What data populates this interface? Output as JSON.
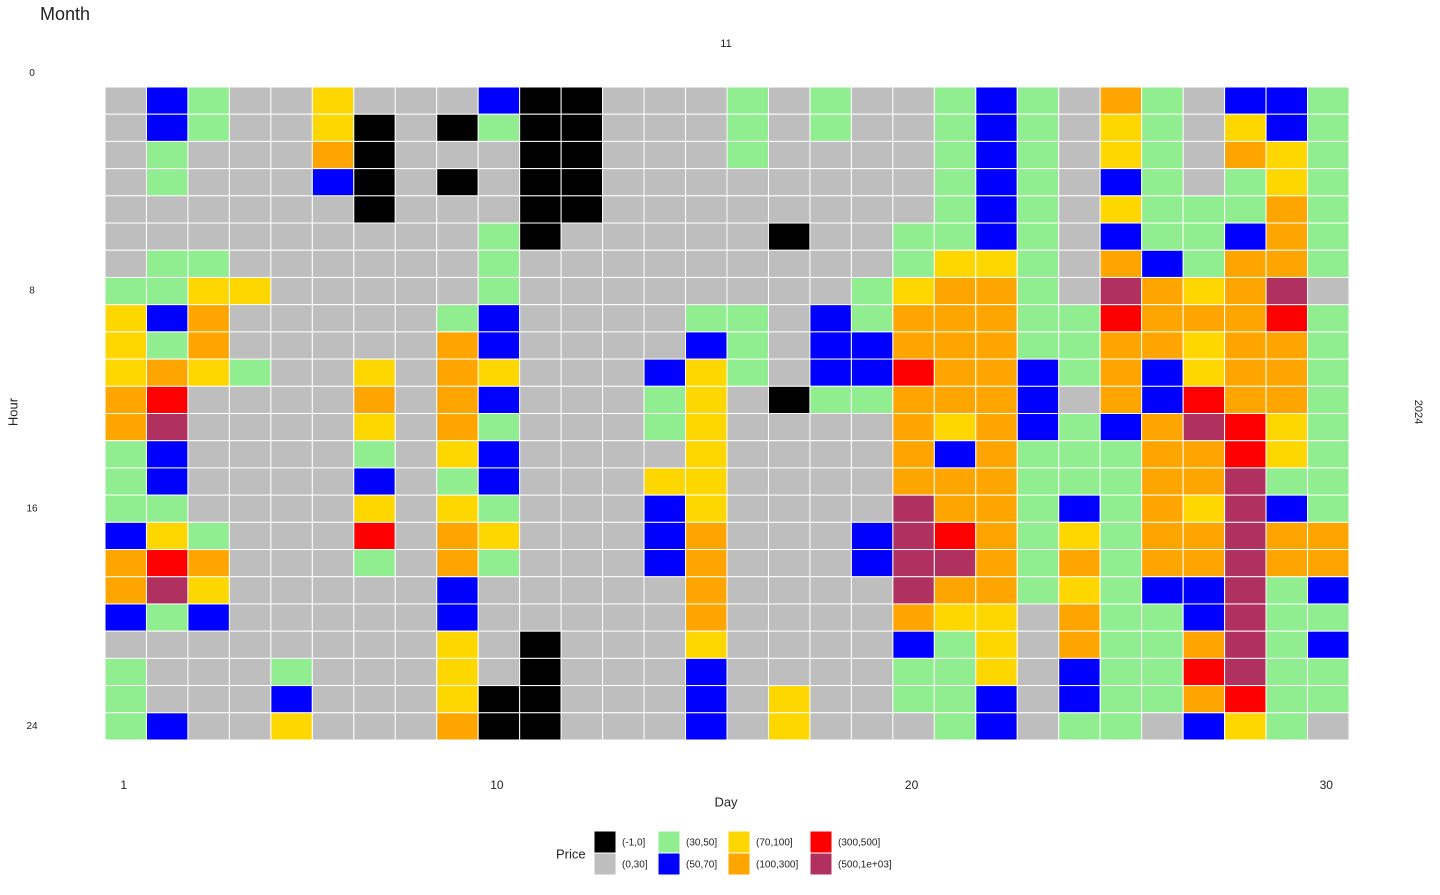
{
  "chart_data": {
    "type": "heatmap",
    "title": "Month",
    "facet_top": "11",
    "facet_right": "2024",
    "x_label": "Day",
    "y_label": "Hour",
    "legend_title": "Price",
    "xlim": [
      0.5,
      30.5
    ],
    "xticks": [
      1,
      10,
      20,
      30
    ],
    "ylim": [
      0.5,
      24.5
    ],
    "yticks": [
      0,
      8,
      16,
      24
    ],
    "y_reversed": true,
    "x": [
      1,
      2,
      3,
      4,
      5,
      6,
      7,
      8,
      9,
      10,
      11,
      12,
      13,
      14,
      15,
      16,
      17,
      18,
      19,
      20,
      21,
      22,
      23,
      24,
      25,
      26,
      27,
      28,
      29,
      30
    ],
    "y": [
      1,
      2,
      3,
      4,
      5,
      6,
      7,
      8,
      9,
      10,
      11,
      12,
      13,
      14,
      15,
      16,
      17,
      18,
      19,
      20,
      21,
      22,
      23,
      24
    ],
    "legend": [
      {
        "label": "(-1,0]",
        "color": "#000000"
      },
      {
        "label": "(0,30]",
        "color": "#bebebe"
      },
      {
        "label": "(30,50]",
        "color": "#90ee90"
      },
      {
        "label": "(50,70]",
        "color": "#0000ff"
      },
      {
        "label": "(70,100]",
        "color": "#ffd700"
      },
      {
        "label": "(100,300]",
        "color": "#ffa500"
      },
      {
        "label": "(300,500]",
        "color": "#ff0000"
      },
      {
        "label": "(500,1e+03]",
        "color": "#b03060"
      }
    ],
    "values": [
      [
        "(0,30]",
        "(50,70]",
        "(30,50]",
        "(0,30]",
        "(0,30]",
        "(70,100]",
        "(0,30]",
        "(0,30]",
        "(0,30]",
        "(50,70]",
        "(-1,0]",
        "(-1,0]",
        "(0,30]",
        "(0,30]",
        "(0,30]",
        "(30,50]",
        "(0,30]",
        "(30,50]",
        "(0,30]",
        "(0,30]",
        "(30,50]",
        "(50,70]",
        "(30,50]",
        "(0,30]",
        "(100,300]",
        "(30,50]",
        "(0,30]",
        "(50,70]",
        "(50,70]",
        "(30,50]"
      ],
      [
        "(0,30]",
        "(50,70]",
        "(30,50]",
        "(0,30]",
        "(0,30]",
        "(70,100]",
        "(-1,0]",
        "(0,30]",
        "(-1,0]",
        "(30,50]",
        "(-1,0]",
        "(-1,0]",
        "(0,30]",
        "(0,30]",
        "(0,30]",
        "(30,50]",
        "(0,30]",
        "(30,50]",
        "(0,30]",
        "(0,30]",
        "(30,50]",
        "(50,70]",
        "(30,50]",
        "(0,30]",
        "(70,100]",
        "(30,50]",
        "(0,30]",
        "(70,100]",
        "(50,70]",
        "(30,50]"
      ],
      [
        "(0,30]",
        "(30,50]",
        "(0,30]",
        "(0,30]",
        "(0,30]",
        "(100,300]",
        "(-1,0]",
        "(0,30]",
        "(0,30]",
        "(0,30]",
        "(-1,0]",
        "(-1,0]",
        "(0,30]",
        "(0,30]",
        "(0,30]",
        "(30,50]",
        "(0,30]",
        "(0,30]",
        "(0,30]",
        "(0,30]",
        "(30,50]",
        "(50,70]",
        "(30,50]",
        "(0,30]",
        "(70,100]",
        "(30,50]",
        "(0,30]",
        "(100,300]",
        "(70,100]",
        "(30,50]"
      ],
      [
        "(0,30]",
        "(30,50]",
        "(0,30]",
        "(0,30]",
        "(0,30]",
        "(50,70]",
        "(-1,0]",
        "(0,30]",
        "(-1,0]",
        "(0,30]",
        "(-1,0]",
        "(-1,0]",
        "(0,30]",
        "(0,30]",
        "(0,30]",
        "(0,30]",
        "(0,30]",
        "(0,30]",
        "(0,30]",
        "(0,30]",
        "(30,50]",
        "(50,70]",
        "(30,50]",
        "(0,30]",
        "(50,70]",
        "(30,50]",
        "(0,30]",
        "(30,50]",
        "(70,100]",
        "(30,50]"
      ],
      [
        "(0,30]",
        "(0,30]",
        "(0,30]",
        "(0,30]",
        "(0,30]",
        "(0,30]",
        "(-1,0]",
        "(0,30]",
        "(0,30]",
        "(0,30]",
        "(-1,0]",
        "(-1,0]",
        "(0,30]",
        "(0,30]",
        "(0,30]",
        "(0,30]",
        "(0,30]",
        "(0,30]",
        "(0,30]",
        "(0,30]",
        "(30,50]",
        "(50,70]",
        "(30,50]",
        "(0,30]",
        "(70,100]",
        "(30,50]",
        "(30,50]",
        "(30,50]",
        "(100,300]",
        "(30,50]"
      ],
      [
        "(0,30]",
        "(0,30]",
        "(0,30]",
        "(0,30]",
        "(0,30]",
        "(0,30]",
        "(0,30]",
        "(0,30]",
        "(0,30]",
        "(30,50]",
        "(-1,0]",
        "(0,30]",
        "(0,30]",
        "(0,30]",
        "(0,30]",
        "(0,30]",
        "(-1,0]",
        "(0,30]",
        "(0,30]",
        "(30,50]",
        "(30,50]",
        "(50,70]",
        "(30,50]",
        "(0,30]",
        "(50,70]",
        "(30,50]",
        "(30,50]",
        "(50,70]",
        "(100,300]",
        "(30,50]"
      ],
      [
        "(0,30]",
        "(30,50]",
        "(30,50]",
        "(0,30]",
        "(0,30]",
        "(0,30]",
        "(0,30]",
        "(0,30]",
        "(0,30]",
        "(30,50]",
        "(0,30]",
        "(0,30]",
        "(0,30]",
        "(0,30]",
        "(0,30]",
        "(0,30]",
        "(0,30]",
        "(0,30]",
        "(0,30]",
        "(30,50]",
        "(70,100]",
        "(70,100]",
        "(30,50]",
        "(0,30]",
        "(100,300]",
        "(50,70]",
        "(30,50]",
        "(100,300]",
        "(100,300]",
        "(30,50]"
      ],
      [
        "(30,50]",
        "(30,50]",
        "(70,100]",
        "(70,100]",
        "(0,30]",
        "(0,30]",
        "(0,30]",
        "(0,30]",
        "(0,30]",
        "(30,50]",
        "(0,30]",
        "(0,30]",
        "(0,30]",
        "(0,30]",
        "(0,30]",
        "(0,30]",
        "(0,30]",
        "(0,30]",
        "(30,50]",
        "(70,100]",
        "(100,300]",
        "(100,300]",
        "(30,50]",
        "(0,30]",
        "(500,1e+03]",
        "(100,300]",
        "(70,100]",
        "(100,300]",
        "(500,1e+03]",
        "(0,30]"
      ],
      [
        "(70,100]",
        "(50,70]",
        "(100,300]",
        "(0,30]",
        "(0,30]",
        "(0,30]",
        "(0,30]",
        "(0,30]",
        "(30,50]",
        "(50,70]",
        "(0,30]",
        "(0,30]",
        "(0,30]",
        "(0,30]",
        "(30,50]",
        "(30,50]",
        "(0,30]",
        "(50,70]",
        "(30,50]",
        "(100,300]",
        "(100,300]",
        "(100,300]",
        "(30,50]",
        "(30,50]",
        "(300,500]",
        "(100,300]",
        "(100,300]",
        "(100,300]",
        "(300,500]",
        "(30,50]"
      ],
      [
        "(70,100]",
        "(30,50]",
        "(100,300]",
        "(0,30]",
        "(0,30]",
        "(0,30]",
        "(0,30]",
        "(0,30]",
        "(100,300]",
        "(50,70]",
        "(0,30]",
        "(0,30]",
        "(0,30]",
        "(0,30]",
        "(50,70]",
        "(30,50]",
        "(0,30]",
        "(50,70]",
        "(50,70]",
        "(100,300]",
        "(100,300]",
        "(100,300]",
        "(30,50]",
        "(30,50]",
        "(100,300]",
        "(100,300]",
        "(70,100]",
        "(100,300]",
        "(100,300]",
        "(30,50]"
      ],
      [
        "(70,100]",
        "(100,300]",
        "(70,100]",
        "(30,50]",
        "(0,30]",
        "(0,30]",
        "(70,100]",
        "(0,30]",
        "(100,300]",
        "(70,100]",
        "(0,30]",
        "(0,30]",
        "(0,30]",
        "(50,70]",
        "(70,100]",
        "(30,50]",
        "(0,30]",
        "(50,70]",
        "(50,70]",
        "(300,500]",
        "(100,300]",
        "(100,300]",
        "(50,70]",
        "(30,50]",
        "(100,300]",
        "(50,70]",
        "(70,100]",
        "(100,300]",
        "(100,300]",
        "(30,50]"
      ],
      [
        "(100,300]",
        "(300,500]",
        "(0,30]",
        "(0,30]",
        "(0,30]",
        "(0,30]",
        "(100,300]",
        "(0,30]",
        "(100,300]",
        "(50,70]",
        "(0,30]",
        "(0,30]",
        "(0,30]",
        "(30,50]",
        "(70,100]",
        "(0,30]",
        "(-1,0]",
        "(30,50]",
        "(30,50]",
        "(100,300]",
        "(100,300]",
        "(100,300]",
        "(50,70]",
        "(0,30]",
        "(100,300]",
        "(50,70]",
        "(300,500]",
        "(100,300]",
        "(100,300]",
        "(30,50]"
      ],
      [
        "(100,300]",
        "(500,1e+03]",
        "(0,30]",
        "(0,30]",
        "(0,30]",
        "(0,30]",
        "(70,100]",
        "(0,30]",
        "(100,300]",
        "(30,50]",
        "(0,30]",
        "(0,30]",
        "(0,30]",
        "(30,50]",
        "(70,100]",
        "(0,30]",
        "(0,30]",
        "(0,30]",
        "(0,30]",
        "(100,300]",
        "(70,100]",
        "(100,300]",
        "(50,70]",
        "(30,50]",
        "(50,70]",
        "(100,300]",
        "(500,1e+03]",
        "(300,500]",
        "(70,100]",
        "(30,50]"
      ],
      [
        "(30,50]",
        "(50,70]",
        "(0,30]",
        "(0,30]",
        "(0,30]",
        "(0,30]",
        "(30,50]",
        "(0,30]",
        "(70,100]",
        "(50,70]",
        "(0,30]",
        "(0,30]",
        "(0,30]",
        "(0,30]",
        "(70,100]",
        "(0,30]",
        "(0,30]",
        "(0,30]",
        "(0,30]",
        "(100,300]",
        "(50,70]",
        "(100,300]",
        "(30,50]",
        "(30,50]",
        "(30,50]",
        "(100,300]",
        "(100,300]",
        "(300,500]",
        "(70,100]",
        "(30,50]"
      ],
      [
        "(30,50]",
        "(50,70]",
        "(0,30]",
        "(0,30]",
        "(0,30]",
        "(0,30]",
        "(50,70]",
        "(0,30]",
        "(30,50]",
        "(50,70]",
        "(0,30]",
        "(0,30]",
        "(0,30]",
        "(70,100]",
        "(70,100]",
        "(0,30]",
        "(0,30]",
        "(0,30]",
        "(0,30]",
        "(100,300]",
        "(100,300]",
        "(100,300]",
        "(30,50]",
        "(30,50]",
        "(30,50]",
        "(100,300]",
        "(100,300]",
        "(500,1e+03]",
        "(30,50]",
        "(30,50]"
      ],
      [
        "(30,50]",
        "(30,50]",
        "(0,30]",
        "(0,30]",
        "(0,30]",
        "(0,30]",
        "(70,100]",
        "(0,30]",
        "(70,100]",
        "(30,50]",
        "(0,30]",
        "(0,30]",
        "(0,30]",
        "(50,70]",
        "(70,100]",
        "(0,30]",
        "(0,30]",
        "(0,30]",
        "(0,30]",
        "(500,1e+03]",
        "(100,300]",
        "(100,300]",
        "(30,50]",
        "(50,70]",
        "(30,50]",
        "(100,300]",
        "(70,100]",
        "(500,1e+03]",
        "(50,70]",
        "(30,50]"
      ],
      [
        "(50,70]",
        "(70,100]",
        "(30,50]",
        "(0,30]",
        "(0,30]",
        "(0,30]",
        "(300,500]",
        "(0,30]",
        "(100,300]",
        "(70,100]",
        "(0,30]",
        "(0,30]",
        "(0,30]",
        "(50,70]",
        "(100,300]",
        "(0,30]",
        "(0,30]",
        "(0,30]",
        "(50,70]",
        "(500,1e+03]",
        "(300,500]",
        "(100,300]",
        "(30,50]",
        "(70,100]",
        "(30,50]",
        "(100,300]",
        "(100,300]",
        "(500,1e+03]",
        "(100,300]",
        "(100,300]"
      ],
      [
        "(100,300]",
        "(300,500]",
        "(100,300]",
        "(0,30]",
        "(0,30]",
        "(0,30]",
        "(30,50]",
        "(0,30]",
        "(100,300]",
        "(30,50]",
        "(0,30]",
        "(0,30]",
        "(0,30]",
        "(50,70]",
        "(100,300]",
        "(0,30]",
        "(0,30]",
        "(0,30]",
        "(50,70]",
        "(500,1e+03]",
        "(500,1e+03]",
        "(100,300]",
        "(30,50]",
        "(100,300]",
        "(30,50]",
        "(100,300]",
        "(100,300]",
        "(500,1e+03]",
        "(100,300]",
        "(100,300]"
      ],
      [
        "(100,300]",
        "(500,1e+03]",
        "(70,100]",
        "(0,30]",
        "(0,30]",
        "(0,30]",
        "(0,30]",
        "(0,30]",
        "(50,70]",
        "(0,30]",
        "(0,30]",
        "(0,30]",
        "(0,30]",
        "(0,30]",
        "(100,300]",
        "(0,30]",
        "(0,30]",
        "(0,30]",
        "(0,30]",
        "(500,1e+03]",
        "(100,300]",
        "(100,300]",
        "(30,50]",
        "(70,100]",
        "(30,50]",
        "(50,70]",
        "(50,70]",
        "(500,1e+03]",
        "(30,50]",
        "(50,70]"
      ],
      [
        "(50,70]",
        "(30,50]",
        "(50,70]",
        "(0,30]",
        "(0,30]",
        "(0,30]",
        "(0,30]",
        "(0,30]",
        "(50,70]",
        "(0,30]",
        "(0,30]",
        "(0,30]",
        "(0,30]",
        "(0,30]",
        "(100,300]",
        "(0,30]",
        "(0,30]",
        "(0,30]",
        "(0,30]",
        "(100,300]",
        "(70,100]",
        "(70,100]",
        "(0,30]",
        "(100,300]",
        "(30,50]",
        "(30,50]",
        "(50,70]",
        "(500,1e+03]",
        "(30,50]",
        "(30,50]"
      ],
      [
        "(0,30]",
        "(0,30]",
        "(0,30]",
        "(0,30]",
        "(0,30]",
        "(0,30]",
        "(0,30]",
        "(0,30]",
        "(70,100]",
        "(0,30]",
        "(-1,0]",
        "(0,30]",
        "(0,30]",
        "(0,30]",
        "(70,100]",
        "(0,30]",
        "(0,30]",
        "(0,30]",
        "(0,30]",
        "(50,70]",
        "(30,50]",
        "(70,100]",
        "(0,30]",
        "(100,300]",
        "(30,50]",
        "(30,50]",
        "(100,300]",
        "(500,1e+03]",
        "(30,50]",
        "(50,70]"
      ],
      [
        "(30,50]",
        "(0,30]",
        "(0,30]",
        "(0,30]",
        "(30,50]",
        "(0,30]",
        "(0,30]",
        "(0,30]",
        "(70,100]",
        "(0,30]",
        "(-1,0]",
        "(0,30]",
        "(0,30]",
        "(0,30]",
        "(50,70]",
        "(0,30]",
        "(0,30]",
        "(0,30]",
        "(0,30]",
        "(30,50]",
        "(30,50]",
        "(70,100]",
        "(0,30]",
        "(50,70]",
        "(30,50]",
        "(30,50]",
        "(300,500]",
        "(500,1e+03]",
        "(30,50]",
        "(30,50]"
      ],
      [
        "(30,50]",
        "(0,30]",
        "(0,30]",
        "(0,30]",
        "(50,70]",
        "(0,30]",
        "(0,30]",
        "(0,30]",
        "(70,100]",
        "(-1,0]",
        "(-1,0]",
        "(0,30]",
        "(0,30]",
        "(0,30]",
        "(50,70]",
        "(0,30]",
        "(70,100]",
        "(0,30]",
        "(0,30]",
        "(30,50]",
        "(30,50]",
        "(50,70]",
        "(0,30]",
        "(50,70]",
        "(30,50]",
        "(30,50]",
        "(100,300]",
        "(300,500]",
        "(30,50]",
        "(30,50]"
      ],
      [
        "(30,50]",
        "(50,70]",
        "(0,30]",
        "(0,30]",
        "(70,100]",
        "(0,30]",
        "(0,30]",
        "(0,30]",
        "(100,300]",
        "(-1,0]",
        "(-1,0]",
        "(0,30]",
        "(0,30]",
        "(0,30]",
        "(50,70]",
        "(0,30]",
        "(70,100]",
        "(0,30]",
        "(0,30]",
        "(0,30]",
        "(30,50]",
        "(50,70]",
        "(0,30]",
        "(30,50]",
        "(30,50]",
        "(0,30]",
        "(50,70]",
        "(70,100]",
        "(30,50]",
        "(0,30]"
      ]
    ]
  }
}
